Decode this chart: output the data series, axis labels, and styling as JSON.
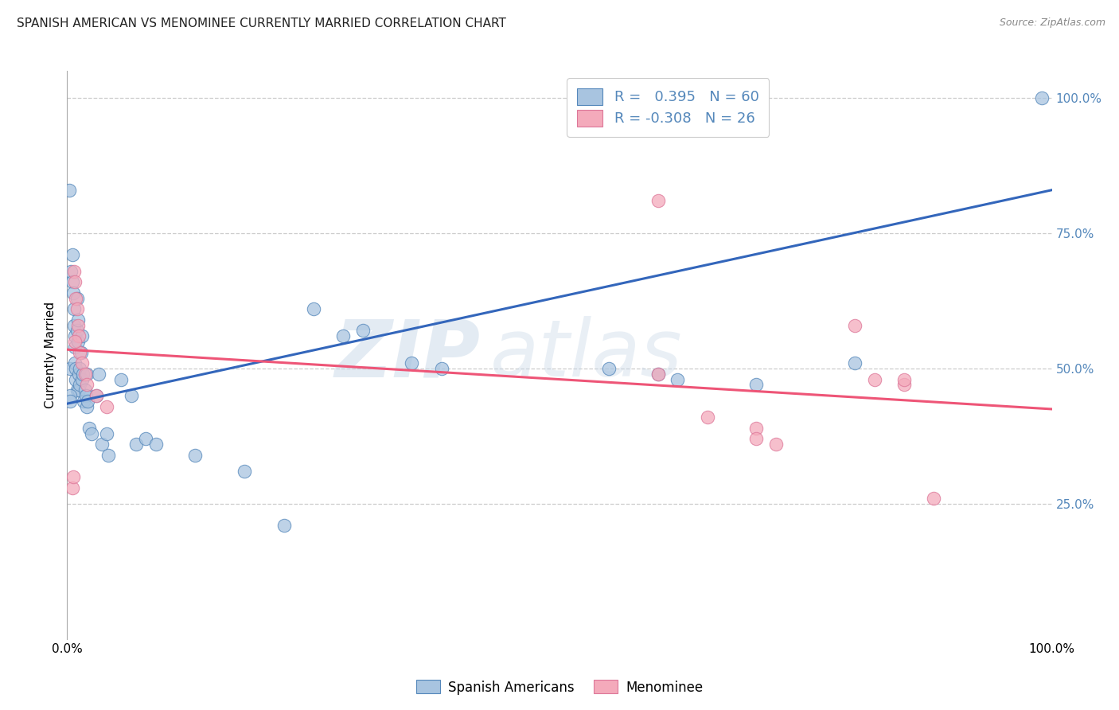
{
  "title": "SPANISH AMERICAN VS MENOMINEE CURRENTLY MARRIED CORRELATION CHART",
  "source": "Source: ZipAtlas.com",
  "ylabel": "Currently Married",
  "xlim": [
    0.0,
    1.0
  ],
  "ylim": [
    0.0,
    1.05
  ],
  "ytick_positions": [
    0.25,
    0.5,
    0.75,
    1.0
  ],
  "xtick_positions": [
    0.0,
    0.2,
    0.4,
    0.6,
    0.8,
    1.0
  ],
  "xtick_labels": [
    "0.0%",
    "",
    "",
    "",
    "",
    "100.0%"
  ],
  "legend1_r": "0.395",
  "legend1_n": "60",
  "legend2_r": "-0.308",
  "legend2_n": "26",
  "legend1_label": "Spanish Americans",
  "legend2_label": "Menominee",
  "blue_fill": "#A8C4E0",
  "blue_edge": "#5588BB",
  "pink_fill": "#F4AABB",
  "pink_edge": "#DD7799",
  "blue_line": "#3366BB",
  "pink_line": "#EE5577",
  "watermark_zip": "ZIP",
  "watermark_atlas": "atlas",
  "background_color": "#FFFFFF",
  "grid_color": "#CCCCCC",
  "ytick_color": "#5588BB",
  "blue_points_x": [
    0.002,
    0.003,
    0.004,
    0.005,
    0.005,
    0.006,
    0.007,
    0.007,
    0.008,
    0.008,
    0.008,
    0.009,
    0.009,
    0.01,
    0.01,
    0.01,
    0.011,
    0.011,
    0.012,
    0.012,
    0.013,
    0.013,
    0.014,
    0.015,
    0.015,
    0.016,
    0.017,
    0.018,
    0.019,
    0.02,
    0.02,
    0.021,
    0.022,
    0.025,
    0.03,
    0.032,
    0.035,
    0.04,
    0.042,
    0.055,
    0.065,
    0.07,
    0.08,
    0.09,
    0.13,
    0.18,
    0.22,
    0.25,
    0.28,
    0.3,
    0.35,
    0.38,
    0.55,
    0.6,
    0.62,
    0.7,
    0.8,
    0.99,
    0.003,
    0.003
  ],
  "blue_points_y": [
    0.83,
    0.5,
    0.68,
    0.71,
    0.66,
    0.64,
    0.61,
    0.58,
    0.56,
    0.54,
    0.51,
    0.5,
    0.48,
    0.63,
    0.57,
    0.46,
    0.59,
    0.55,
    0.49,
    0.46,
    0.5,
    0.47,
    0.53,
    0.56,
    0.48,
    0.49,
    0.44,
    0.46,
    0.45,
    0.43,
    0.49,
    0.44,
    0.39,
    0.38,
    0.45,
    0.49,
    0.36,
    0.38,
    0.34,
    0.48,
    0.45,
    0.36,
    0.37,
    0.36,
    0.34,
    0.31,
    0.21,
    0.61,
    0.56,
    0.57,
    0.51,
    0.5,
    0.5,
    0.49,
    0.48,
    0.47,
    0.51,
    1.0,
    0.45,
    0.44
  ],
  "pink_points_x": [
    0.005,
    0.006,
    0.007,
    0.008,
    0.009,
    0.01,
    0.011,
    0.012,
    0.013,
    0.015,
    0.018,
    0.02,
    0.03,
    0.04,
    0.6,
    0.65,
    0.7,
    0.72,
    0.8,
    0.82,
    0.85,
    0.88,
    0.6,
    0.7,
    0.85,
    0.008
  ],
  "pink_points_y": [
    0.28,
    0.3,
    0.68,
    0.66,
    0.63,
    0.61,
    0.58,
    0.56,
    0.53,
    0.51,
    0.49,
    0.47,
    0.45,
    0.43,
    0.49,
    0.41,
    0.39,
    0.36,
    0.58,
    0.48,
    0.47,
    0.26,
    0.81,
    0.37,
    0.48,
    0.55
  ],
  "blue_line_x": [
    0.0,
    1.0
  ],
  "blue_line_y": [
    0.435,
    0.83
  ],
  "pink_line_x": [
    0.0,
    1.0
  ],
  "pink_line_y": [
    0.535,
    0.425
  ]
}
